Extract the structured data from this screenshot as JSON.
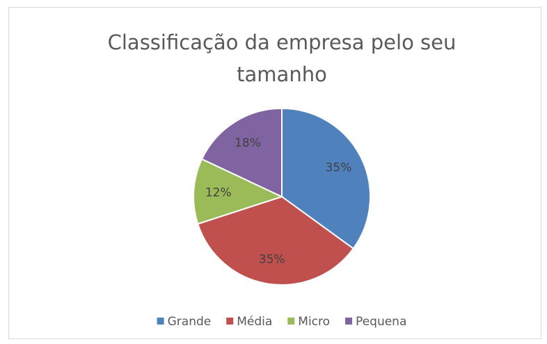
{
  "chart_data": {
    "type": "pie",
    "title": "Classificação da empresa pelo seu tamanho",
    "categories": [
      "Grande",
      "Média",
      "Micro",
      "Pequena"
    ],
    "values": [
      35,
      35,
      12,
      18
    ],
    "value_labels": [
      "35%",
      "35%",
      "12%",
      "18%"
    ],
    "colors": [
      "#4f81bd",
      "#c0504d",
      "#9bbb59",
      "#8064a2"
    ],
    "legend": "bottom"
  }
}
